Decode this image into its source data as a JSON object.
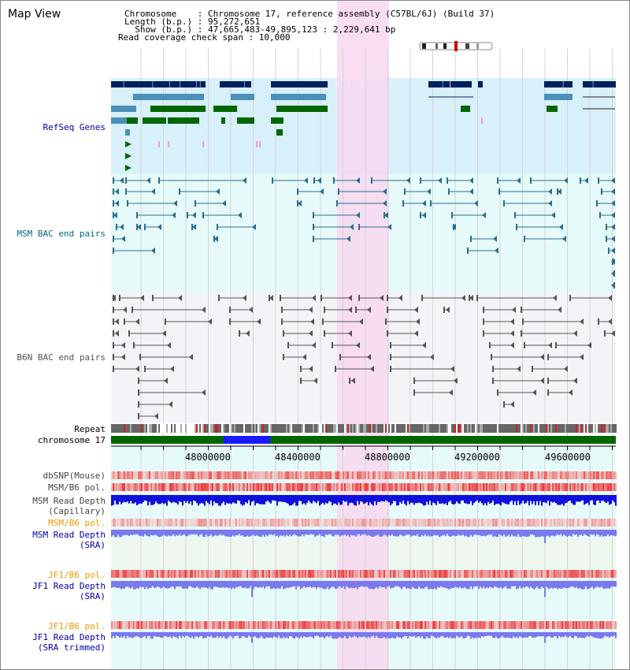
{
  "app": {
    "title": "Map View"
  },
  "header": {
    "lines": [
      "Chromosome    : Chromosome 17, reference assembly (C57BL/6J) (Build 37)",
      "Length (b.p.) : 95,272,651",
      "  Show (b.p.) : 47,665,483-49,895,123 : 2,229,641 bp",
      "Read coverage check span : 10,000"
    ]
  },
  "tracks": {
    "refseq": {
      "label": "RefSeq Genes",
      "color": "#0000aa"
    },
    "msm_bac": {
      "label": "MSM BAC end pairs",
      "color": "#006688"
    },
    "b6n_bac": {
      "label": "B6N BAC end pairs",
      "color": "#555555"
    },
    "repeat": {
      "label": "Repeat",
      "color": "#000000"
    },
    "chromosome": {
      "label": "chromosome 17",
      "color": "#000000"
    },
    "dbsnp": {
      "label": "dbSNP(Mouse)",
      "color": "#444444"
    },
    "msm_b6_pol_1": {
      "label": "MSM/B6 pol.",
      "color": "#444444"
    },
    "msm_read_depth_cap": {
      "label": "MSM Read Depth\n(Capillary)",
      "color": "#444444"
    },
    "msm_b6_pol_2": {
      "label": "MSM/B6 pol.",
      "color": "#ee9900"
    },
    "msm_read_depth_sra": {
      "label": "MSM Read Depth\n(SRA)",
      "color": "#0000aa"
    },
    "jf1_b6_pol_1": {
      "label": "JF1/B6 pol.",
      "color": "#ee9900"
    },
    "jf1_read_depth_sra": {
      "label": "JF1 Read Depth\n(SRA)",
      "color": "#0000aa"
    },
    "jf1_b6_pol_2": {
      "label": "JF1/B6 pol.",
      "color": "#ee9900"
    },
    "jf1_read_depth_trim": {
      "label": "JF1 Read Depth\n(SRA trimmed)",
      "color": "#0000aa"
    }
  },
  "ruler": {
    "ticks": [
      "48000000",
      "48400000",
      "48800000",
      "49200000",
      "49600000"
    ]
  },
  "colors": {
    "refseq_bg": "#d8f0fa",
    "msm_bg": "#e6fafa",
    "b6n_bg": "#f4f4f8",
    "lower_bg": "#e6fafa",
    "highlight": "#f8d8f0",
    "gene_dark": "#002060",
    "gene_mid": "#4a90b8",
    "gene_green": "#006600",
    "bac_msm": "#2a6e8e",
    "bac_b6n": "#555555",
    "chrom_green": "#006600",
    "chrom_blue": "#1a1aff",
    "depth_blue": "#1010dd",
    "depth_light": "#7a7aee",
    "pol_red": "#ee3333"
  }
}
